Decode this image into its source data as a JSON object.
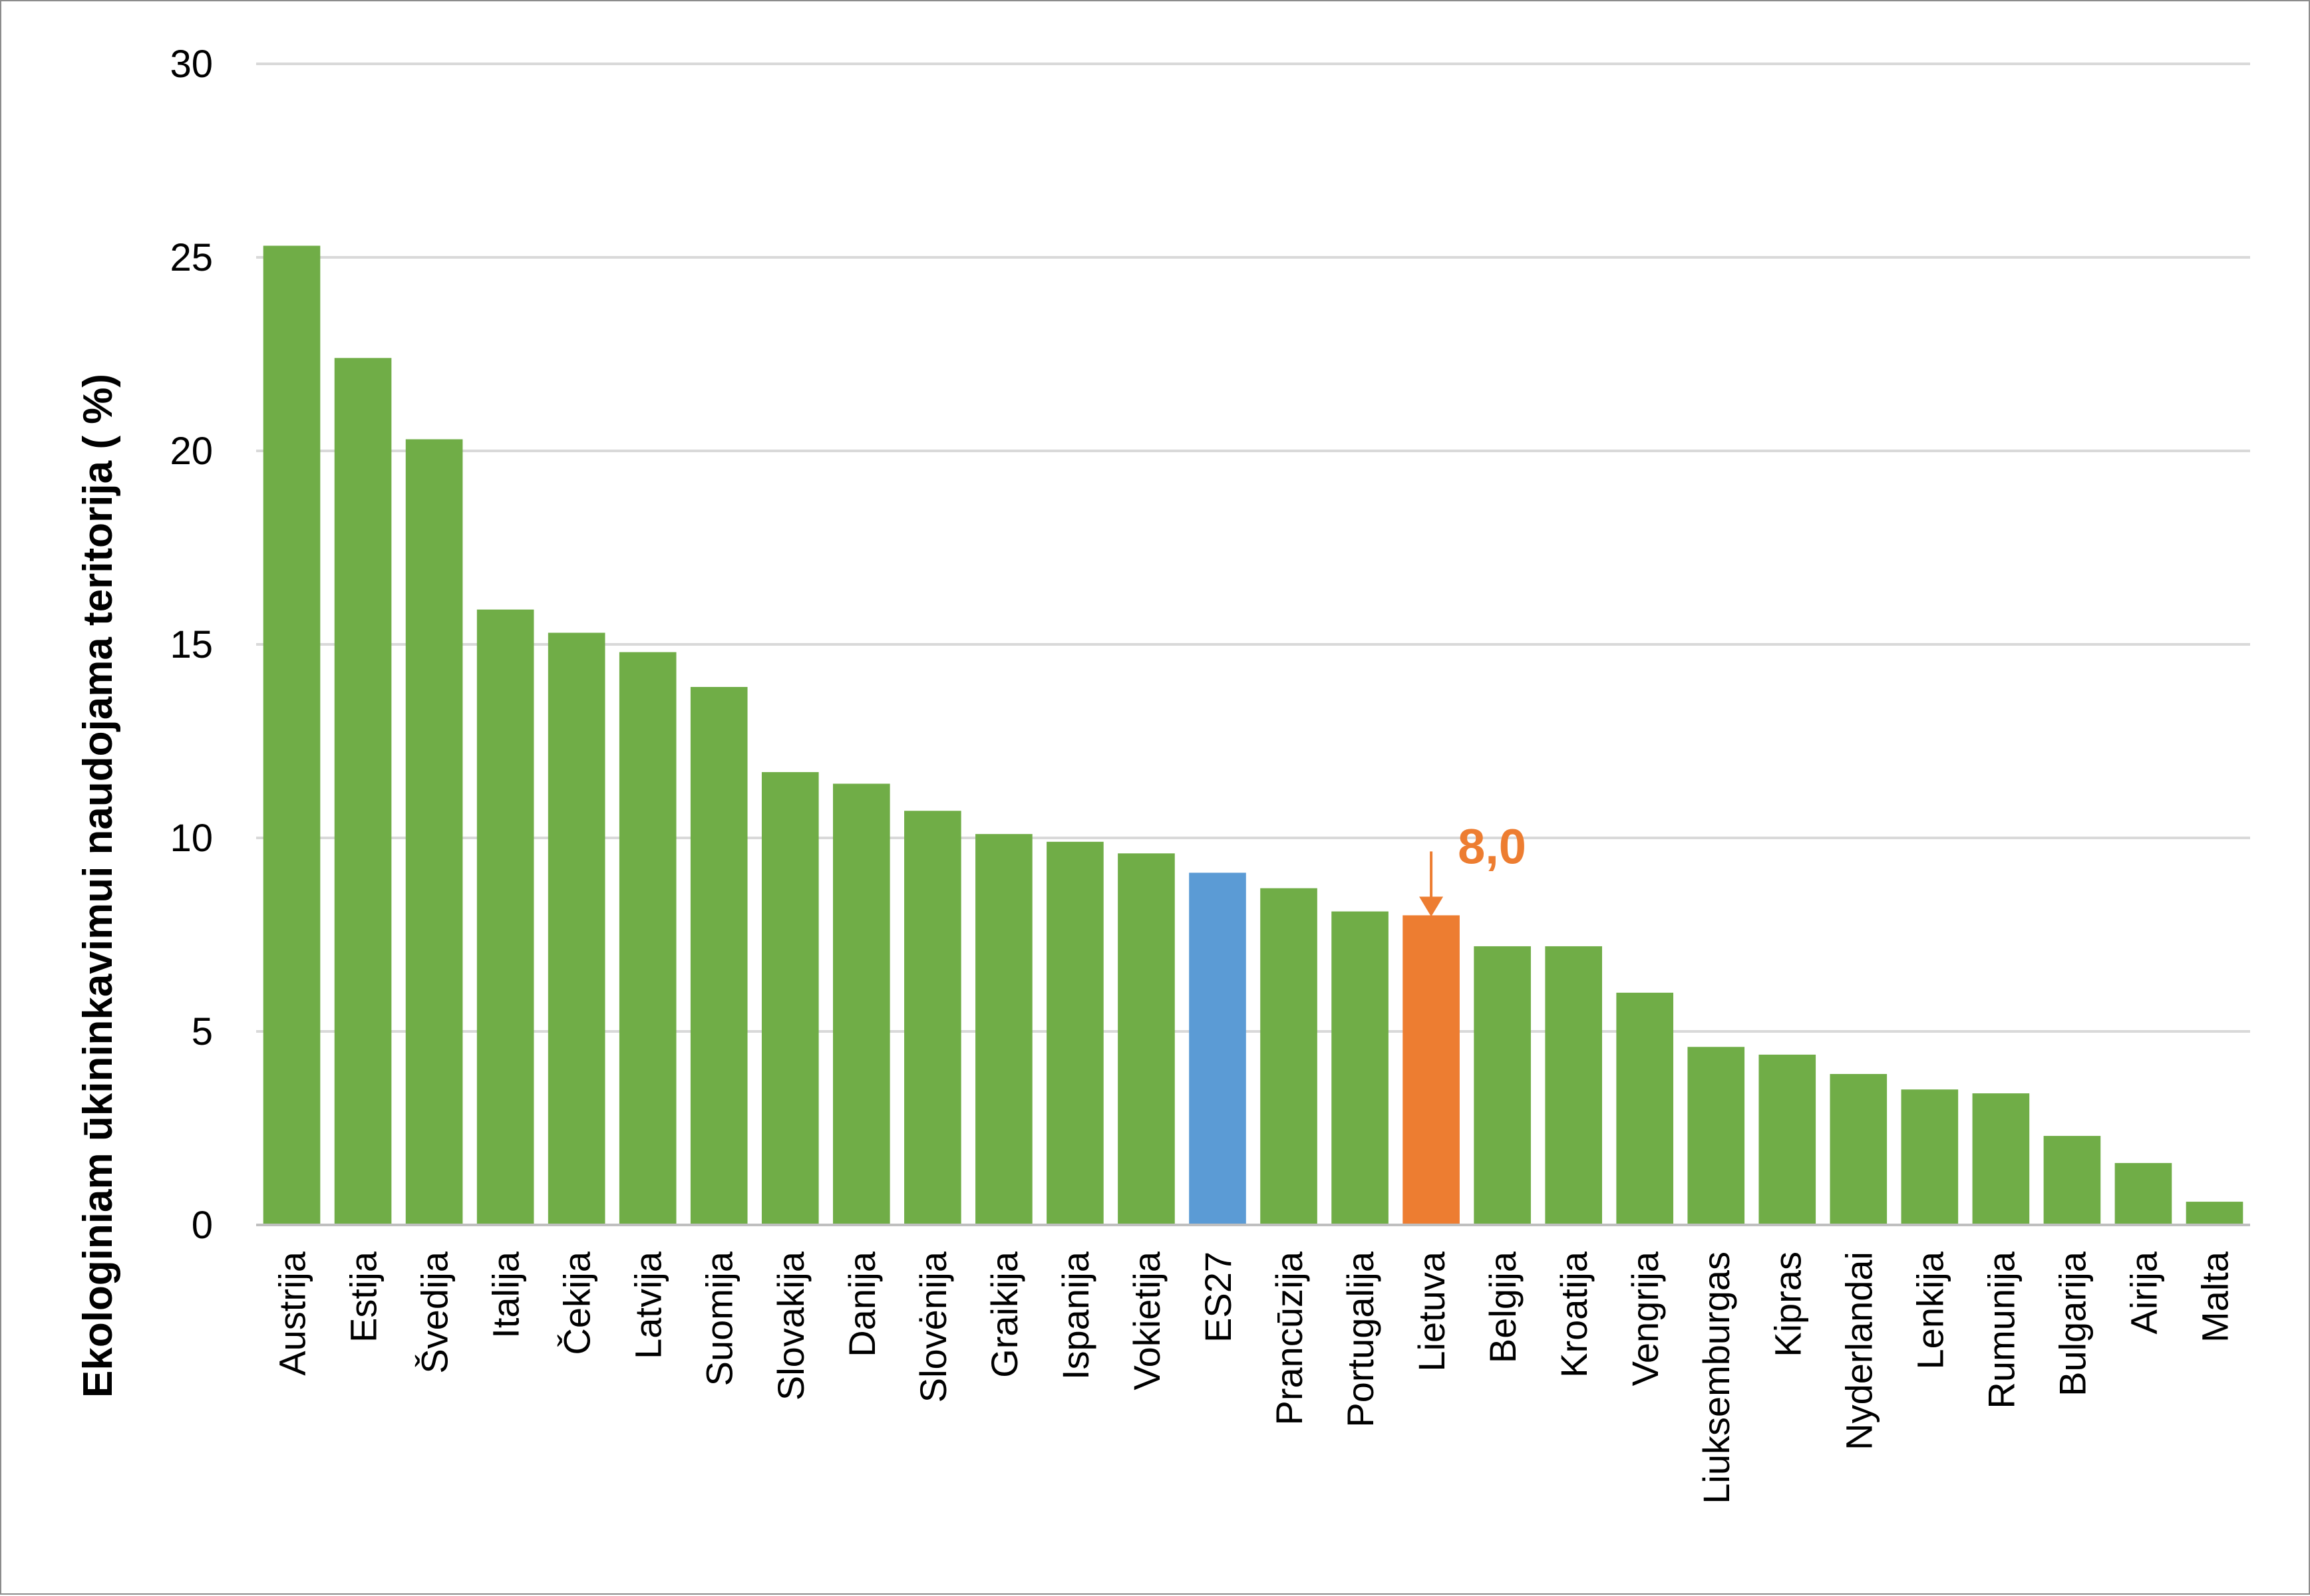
{
  "chart_data": {
    "type": "bar",
    "title": "",
    "xlabel": "",
    "ylabel": "Ekologiniam ūkininkavimui naudojama teritorija ( %)",
    "ylim": [
      0,
      30
    ],
    "yticks": [
      "0",
      "5",
      "10",
      "15",
      "20",
      "25",
      "30"
    ],
    "grid": true,
    "categories": [
      "Austrija",
      "Estija",
      "Švedija",
      "Italija",
      "Čekija",
      "Latvija",
      "Suomija",
      "Slovakija",
      "Danija",
      "Slovėnija",
      "Graikija",
      "Ispanija",
      "Vokietija",
      "ES27",
      "Prancūzija",
      "Portugalija",
      "Lietuva",
      "Belgija",
      "Kroatija",
      "Vengrija",
      "Liuksemburgas",
      "Kipras",
      "Nyderlandai",
      "Lenkija",
      "Rumunija",
      "Bulgarija",
      "Airija",
      "Malta"
    ],
    "values": [
      25.3,
      22.4,
      20.3,
      15.9,
      15.3,
      14.8,
      13.9,
      11.7,
      11.4,
      10.7,
      10.1,
      9.9,
      9.6,
      9.1,
      8.7,
      8.1,
      8.0,
      7.2,
      7.2,
      6.0,
      4.6,
      4.4,
      3.9,
      3.5,
      3.4,
      2.3,
      1.6,
      0.6
    ],
    "colors": {
      "default": "#70ad47",
      "ES27": "#5b9bd5",
      "Lietuva": "#ed7d31",
      "grid": "#d9d9d9",
      "axis": "#bfbfbf"
    },
    "annotation": {
      "category": "Lietuva",
      "text": "8,0",
      "color": "#ed7d31"
    }
  }
}
